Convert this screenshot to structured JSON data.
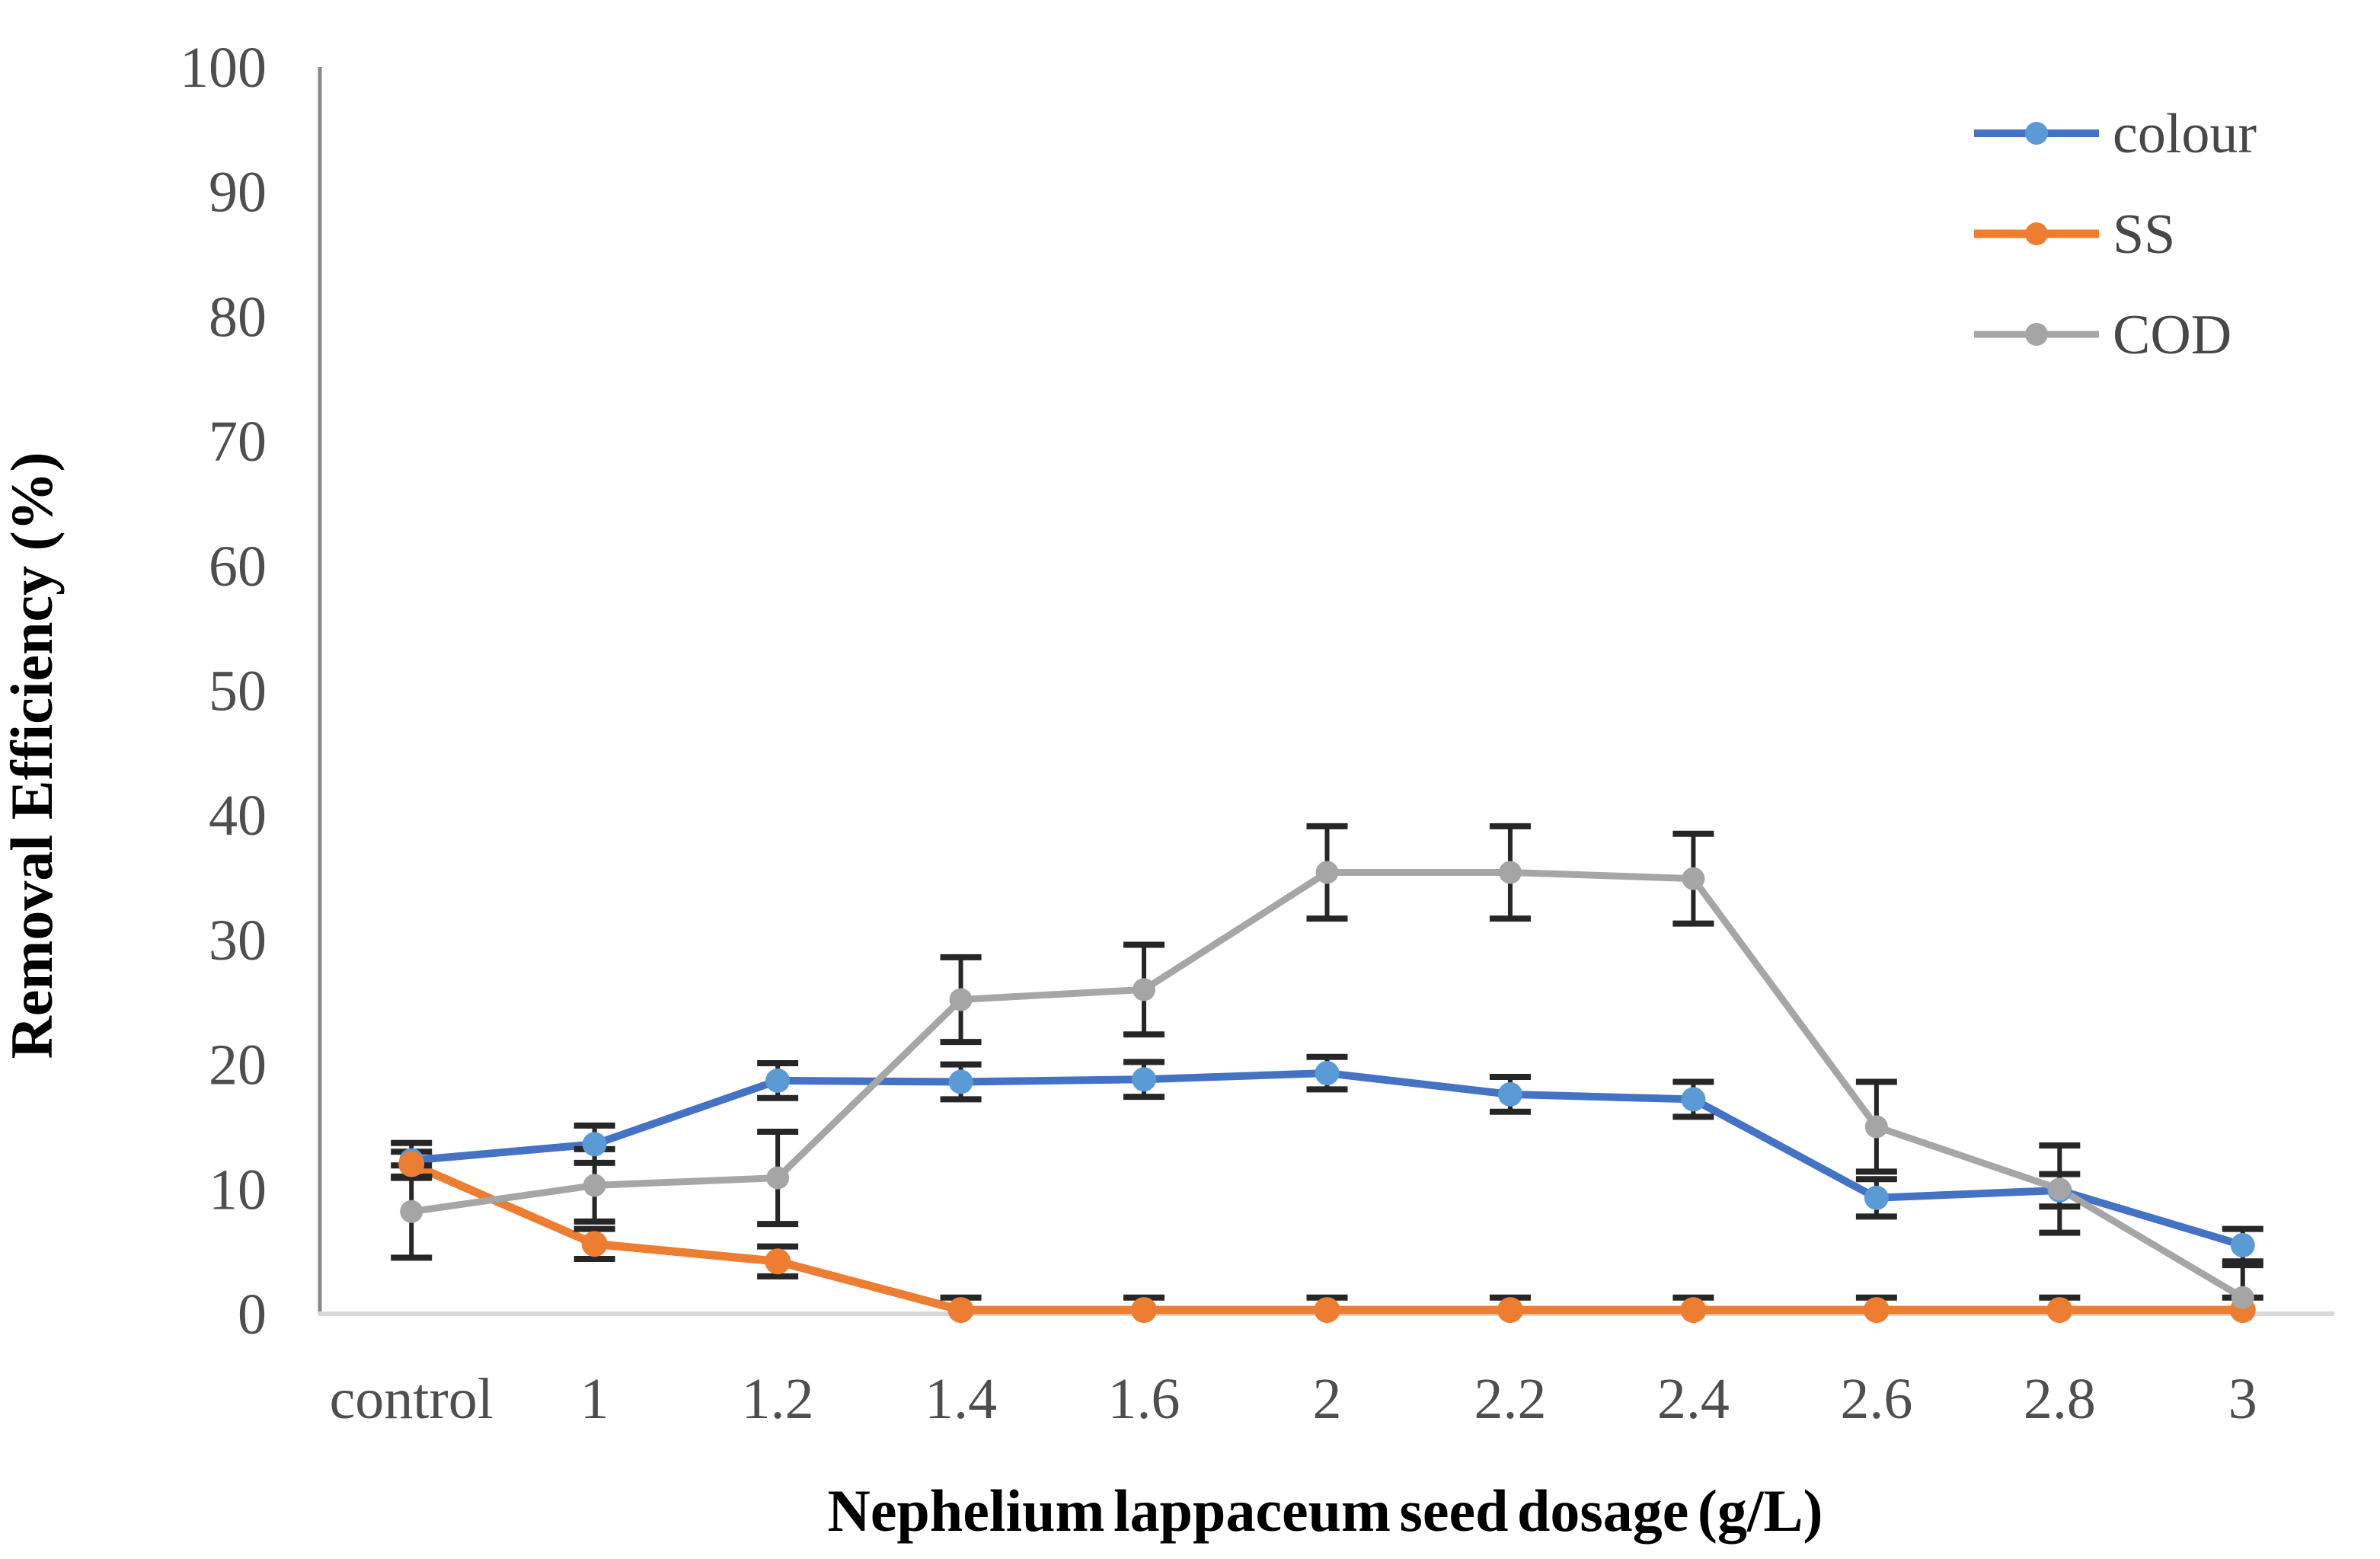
{
  "chart_data": {
    "type": "line",
    "title": "",
    "xlabel": "Nephelium lappaceum seed dosage (g/L)",
    "ylabel": "Removal Efficiency (%)",
    "categories": [
      "control",
      "1",
      "1.2",
      "1.4",
      "1.6",
      "2",
      "2.2",
      "2.4",
      "2.6",
      "2.8",
      "3"
    ],
    "y_ticks": [
      0,
      10,
      20,
      30,
      40,
      50,
      60,
      70,
      80,
      90,
      100
    ],
    "ylim": [
      0,
      100
    ],
    "grid": false,
    "error_bars": true,
    "legend_position": "top-right-inside",
    "series": [
      {
        "name": "colour",
        "values": [
          12.3,
          13.6,
          18.7,
          18.6,
          18.8,
          19.3,
          17.6,
          17.2,
          9.3,
          9.9,
          5.5
        ],
        "errors": [
          1.4,
          1.5,
          1.4,
          1.4,
          1.4,
          1.3,
          1.4,
          1.4,
          1.5,
          1.3,
          1.3
        ],
        "line_color": "#4472C4",
        "marker_color": "#5B9BD5",
        "line_width": 10,
        "marker_radius": 16
      },
      {
        "name": "SS",
        "values": [
          12.0,
          5.6,
          4.2,
          0.3,
          0.3,
          0.3,
          0.3,
          0.3,
          0.3,
          0.3,
          0.3
        ],
        "errors": [
          1.0,
          1.2,
          1.2,
          1.0,
          1.0,
          1.0,
          1.0,
          1.0,
          1.0,
          1.0,
          1.0
        ],
        "line_color": "#ED7D31",
        "marker_color": "#ED7D31",
        "line_width": 11,
        "marker_radius": 17
      },
      {
        "name": "COD",
        "values": [
          8.2,
          10.3,
          10.9,
          25.2,
          26.0,
          35.4,
          35.4,
          34.9,
          15.0,
          10.0,
          1.3
        ],
        "errors": [
          3.7,
          2.9,
          3.7,
          3.4,
          3.6,
          3.7,
          3.7,
          3.6,
          3.6,
          3.5,
          2.6
        ],
        "line_color": "#A6A6A6",
        "marker_color": "#A5A5A5",
        "line_width": 9,
        "marker_radius": 15
      }
    ]
  },
  "style": {
    "background": "#ffffff",
    "y_axis_line_color": "#898989",
    "x_axis_line_color": "#D9D9D9",
    "error_bar_color": "#262626",
    "tick_label_color": "#4e4e4e",
    "legend_label_color": "#474747",
    "title_color": "#000000"
  }
}
